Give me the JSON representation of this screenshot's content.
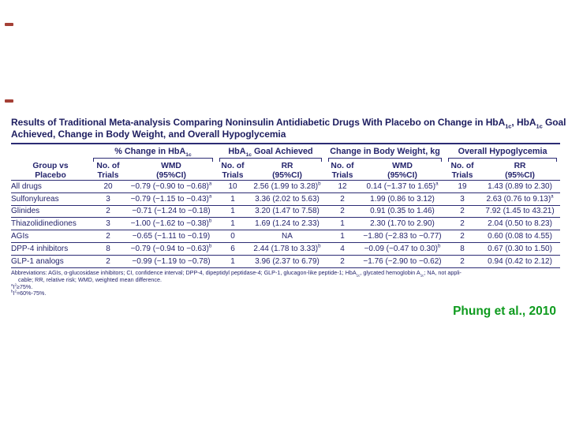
{
  "slide": {
    "citation": "Phung et al., 2010",
    "citation_color": "#0e9b1e",
    "annotation_marks": 2
  },
  "table": {
    "title_lines": [
      "Results of Traditional Meta-analysis Comparing Noninsulin Antidiabetic Drugs With Placebo on Change in HbA~1c~, HbA~1c~ Goal",
      "Achieved, Change in Body Weight, and Overall Hypoglycemia"
    ],
    "row_header": "Group vs\nPlacebo",
    "column_groups": [
      "% Change in HbA~1c~",
      "HbA~1c~ Goal Achieved",
      "Change in Body Weight, kg",
      "Overall Hypoglycemia"
    ],
    "sub_headers": [
      "No. of\nTrials",
      "WMD\n(95%CI)",
      "No. of\nTrials",
      "RR\n(95%CI)",
      "No. of\nTrials",
      "WMD\n(95%CI)",
      "No. of\nTrials",
      "RR\n(95%CI)"
    ],
    "rows": [
      {
        "group": "All drugs",
        "cells": [
          "20",
          "−0.79 (−0.90 to −0.68)^a^",
          "10",
          "2.56 (1.99 to 3.28)^b^",
          "12",
          "0.14 (−1.37 to 1.65)^a^",
          "19",
          "1.43 (0.89 to 2.30)"
        ]
      },
      {
        "group": "Sulfonylureas",
        "cells": [
          "3",
          "−0.79 (−1.15 to −0.43)^a^",
          "1",
          "3.36 (2.02 to 5.63)",
          "2",
          "1.99 (0.86 to 3.12)",
          "3",
          "2.63 (0.76 to 9.13)^a^"
        ]
      },
      {
        "group": "Glinides",
        "cells": [
          "2",
          "−0.71 (−1.24 to −0.18)",
          "1",
          "3.20 (1.47 to 7.58)",
          "2",
          "0.91 (0.35 to 1.46)",
          "2",
          "7.92 (1.45 to 43.21)"
        ]
      },
      {
        "group": "Thiazolidinediones",
        "cells": [
          "3",
          "−1.00 (−1.62 to −0.38)^b^",
          "1",
          "1.69 (1.24 to 2.33)",
          "1",
          "2.30 (1.70 to 2.90)",
          "2",
          "2.04 (0.50 to 8.23)"
        ]
      },
      {
        "group": "AGIs",
        "cells": [
          "2",
          "−0.65 (−1.11 to −0.19)",
          "0",
          "NA",
          "1",
          "−1.80 (−2.83 to −0.77)",
          "2",
          "0.60 (0.08 to 4.55)"
        ]
      },
      {
        "group": "DPP-4 inhibitors",
        "cells": [
          "8",
          "−0.79 (−0.94 to −0.63)^b^",
          "6",
          "2.44 (1.78 to 3.33)^b^",
          "4",
          "−0.09 (−0.47 to 0.30)^b^",
          "8",
          "0.67 (0.30 to 1.50)"
        ]
      },
      {
        "group": "GLP-1 analogs",
        "cells": [
          "2",
          "−0.99 (−1.19 to −0.78)",
          "1",
          "3.96 (2.37 to 6.79)",
          "2",
          "−1.76 (−2.90 to −0.62)",
          "2",
          "0.94 (0.42 to 2.12)"
        ]
      }
    ],
    "footnotes": [
      "Abbreviations: AGIs, α-glucosidase inhibitors; CI, confidence interval; DPP-4, dipeptidyl peptidase-4; GLP-1, glucagon-like peptide-1; HbA~1c~, glycated hemoglobin A~1c~; NA, not appli-",
      "cable; RR, relative risk; WMD, weighted mean difference.",
      "^a^I^2^≥75%.",
      "^b^I^2^=60%-75%."
    ]
  }
}
